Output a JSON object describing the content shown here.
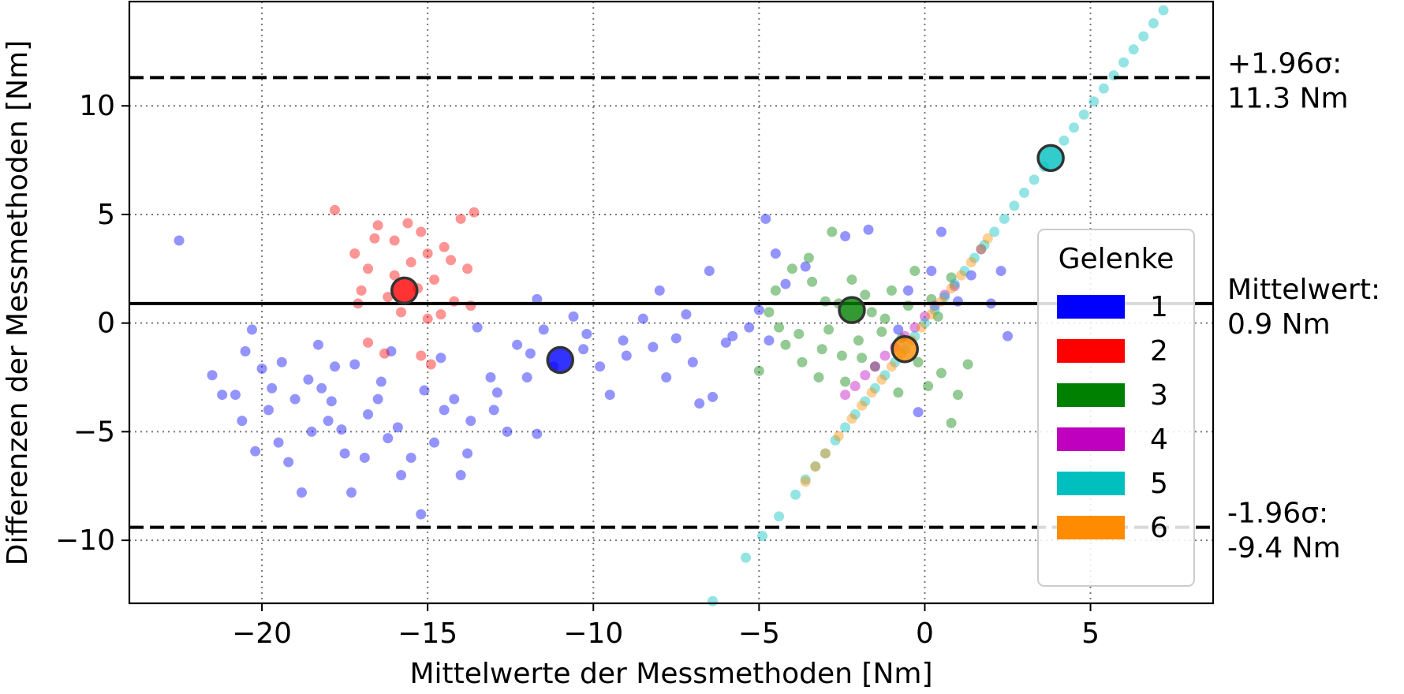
{
  "chart_data": {
    "type": "scatter",
    "title": "",
    "xlabel": "Mittelwerte der Messmethoden [Nm]",
    "ylabel": "Differenzen der Messmethoden [Nm]",
    "xlim": [
      -24,
      8.7
    ],
    "ylim": [
      -12.9,
      14.8
    ],
    "xticks": [
      -20,
      -15,
      -10,
      -5,
      0,
      5
    ],
    "yticks": [
      -10,
      -5,
      0,
      5,
      10
    ],
    "xtick_labels": [
      "−20",
      "−15",
      "−10",
      "−5",
      "0",
      "5"
    ],
    "ytick_labels": [
      "−10",
      "−5",
      "0",
      "5",
      "10"
    ],
    "grid": true,
    "legend": {
      "title": "Gelenke",
      "placement": "lower-right"
    },
    "reference_lines": [
      {
        "name": "upper",
        "y": 11.3,
        "style": "dashed",
        "label_line1": "+1.96σ:",
        "label_line2": "11.3 Nm"
      },
      {
        "name": "mean",
        "y": 0.9,
        "style": "solid",
        "label_line1": "Mittelwert:",
        "label_line2": "0.9 Nm"
      },
      {
        "name": "lower",
        "y": -9.4,
        "style": "dashed",
        "label_line1": "-1.96σ:",
        "label_line2": "-9.4 Nm"
      }
    ],
    "series": [
      {
        "name": "1",
        "color": "#0000ff",
        "mean_point": [
          -11.0,
          -1.7
        ],
        "points": [
          [
            -22.5,
            3.8
          ],
          [
            -21.5,
            -2.4
          ],
          [
            -21.2,
            -3.3
          ],
          [
            -20.8,
            -3.3
          ],
          [
            -20.5,
            -1.3
          ],
          [
            -20.3,
            -0.3
          ],
          [
            -20.0,
            -2.1
          ],
          [
            -20.6,
            -4.5
          ],
          [
            -19.5,
            -5.5
          ],
          [
            -19.8,
            -4.0
          ],
          [
            -19.2,
            -6.4
          ],
          [
            -18.8,
            -7.8
          ],
          [
            -18.5,
            -5.0
          ],
          [
            -18.0,
            -4.5
          ],
          [
            -18.2,
            -3.0
          ],
          [
            -17.8,
            -2.0
          ],
          [
            -17.5,
            -6.0
          ],
          [
            -17.3,
            -7.8
          ],
          [
            -16.9,
            -6.2
          ],
          [
            -16.5,
            -3.5
          ],
          [
            -16.2,
            -5.3
          ],
          [
            -15.8,
            -7.0
          ],
          [
            -15.5,
            -6.2
          ],
          [
            -15.2,
            -8.8
          ],
          [
            -14.8,
            -5.5
          ],
          [
            -14.5,
            -4.0
          ],
          [
            -14.2,
            -3.5
          ],
          [
            -14.0,
            -7.0
          ],
          [
            -13.8,
            -6.0
          ],
          [
            -13.5,
            -0.2
          ],
          [
            -13.1,
            -2.5
          ],
          [
            -13.0,
            -4.0
          ],
          [
            -12.6,
            -5.0
          ],
          [
            -12.3,
            -1.0
          ],
          [
            -12.0,
            -2.5
          ],
          [
            -11.7,
            1.1
          ],
          [
            -11.5,
            -0.3
          ],
          [
            -11.2,
            -2.0
          ],
          [
            -11.7,
            -5.1
          ],
          [
            -10.6,
            0.3
          ],
          [
            -10.3,
            -1.2
          ],
          [
            -10.2,
            -0.5
          ],
          [
            -9.8,
            -2.0
          ],
          [
            -9.5,
            -3.3
          ],
          [
            -9.0,
            -1.5
          ],
          [
            -8.5,
            0.2
          ],
          [
            -8.0,
            1.5
          ],
          [
            -7.8,
            -2.5
          ],
          [
            -7.5,
            -0.7
          ],
          [
            -7.0,
            -1.8
          ],
          [
            -6.8,
            -3.7
          ],
          [
            -6.4,
            -3.4
          ],
          [
            -6.0,
            -0.9
          ],
          [
            -5.8,
            -0.6
          ],
          [
            -5.3,
            -0.2
          ],
          [
            -5.0,
            0.6
          ],
          [
            -4.8,
            4.8
          ],
          [
            -4.5,
            3.2
          ],
          [
            -4.7,
            -0.8
          ],
          [
            -2.4,
            4.0
          ],
          [
            -1.7,
            4.3
          ],
          [
            -0.8,
            -0.3
          ],
          [
            -0.5,
            1.5
          ],
          [
            -0.2,
            -4.1
          ],
          [
            0.2,
            2.4
          ],
          [
            0.5,
            4.2
          ],
          [
            1.4,
            2.2
          ],
          [
            2.0,
            0.9
          ],
          [
            2.3,
            2.4
          ],
          [
            2.5,
            -0.6
          ],
          [
            -19.0,
            -3.5
          ],
          [
            -18.6,
            -2.6
          ],
          [
            -18.3,
            -1.0
          ],
          [
            -17.9,
            -3.6
          ],
          [
            -17.2,
            -1.9
          ],
          [
            -16.8,
            -4.2
          ],
          [
            -16.4,
            -2.7
          ],
          [
            -15.9,
            -4.8
          ],
          [
            -15.1,
            -3.1
          ],
          [
            -14.6,
            -1.6
          ],
          [
            -19.7,
            -3.0
          ],
          [
            -19.4,
            -1.8
          ],
          [
            -17.6,
            -4.9
          ],
          [
            -16.1,
            -1.3
          ],
          [
            -13.7,
            -4.5
          ],
          [
            -12.9,
            -3.2
          ],
          [
            -11.9,
            -1.4
          ],
          [
            -9.1,
            -0.8
          ],
          [
            -8.2,
            -1.1
          ],
          [
            -7.2,
            0.4
          ],
          [
            -6.5,
            2.4
          ],
          [
            -4.2,
            1.8
          ],
          [
            -3.6,
            2.6
          ],
          [
            1.0,
            1.0
          ],
          [
            1.7,
            3.4
          ],
          [
            -20.2,
            -5.9
          ]
        ]
      },
      {
        "name": "2",
        "color": "#ff0000",
        "mean_point": [
          -15.7,
          1.5
        ],
        "points": [
          [
            -17.8,
            5.2
          ],
          [
            -17.2,
            3.2
          ],
          [
            -16.8,
            2.5
          ],
          [
            -16.5,
            4.5
          ],
          [
            -16.2,
            1.2
          ],
          [
            -16.0,
            3.8
          ],
          [
            -15.8,
            0.5
          ],
          [
            -15.5,
            2.8
          ],
          [
            -15.2,
            4.2
          ],
          [
            -15.0,
            0.2
          ],
          [
            -14.8,
            2.0
          ],
          [
            -14.5,
            3.5
          ],
          [
            -14.2,
            1.0
          ],
          [
            -14.0,
            4.8
          ],
          [
            -13.8,
            2.5
          ],
          [
            -13.6,
            5.1
          ],
          [
            -16.8,
            -0.9
          ],
          [
            -16.3,
            -1.4
          ],
          [
            -15.2,
            -1.5
          ],
          [
            -14.9,
            -1.9
          ],
          [
            -13.7,
            0.8
          ],
          [
            -17.0,
            1.5
          ],
          [
            -16.6,
            3.9
          ],
          [
            -15.6,
            4.6
          ],
          [
            -15.3,
            1.6
          ],
          [
            -14.6,
            0.4
          ],
          [
            -14.3,
            2.9
          ],
          [
            -17.1,
            0.9
          ],
          [
            -16.0,
            2.2
          ],
          [
            -15.0,
            3.2
          ]
        ]
      },
      {
        "name": "3",
        "color": "#008000",
        "mean_point": [
          -2.2,
          0.6
        ],
        "points": [
          [
            -5.0,
            -2.2
          ],
          [
            -4.7,
            0.5
          ],
          [
            -4.5,
            1.5
          ],
          [
            -4.2,
            -1.0
          ],
          [
            -4.0,
            2.5
          ],
          [
            -3.8,
            -0.5
          ],
          [
            -3.5,
            3.0
          ],
          [
            -3.2,
            -2.5
          ],
          [
            -3.0,
            1.0
          ],
          [
            -2.8,
            4.2
          ],
          [
            -2.5,
            -1.5
          ],
          [
            -2.2,
            2.0
          ],
          [
            -2.0,
            -0.8
          ],
          [
            -1.8,
            1.3
          ],
          [
            -1.5,
            -2.0
          ],
          [
            -1.2,
            0.2
          ],
          [
            -1.0,
            1.5
          ],
          [
            -0.8,
            -3.2
          ],
          [
            -0.5,
            0.8
          ],
          [
            -0.2,
            -1.8
          ],
          [
            0.2,
            1.1
          ],
          [
            0.5,
            -2.3
          ],
          [
            0.8,
            2.1
          ],
          [
            1.0,
            -3.3
          ],
          [
            1.3,
            -1.9
          ],
          [
            0.8,
            -4.6
          ],
          [
            -3.7,
            -1.8
          ],
          [
            -2.9,
            -0.3
          ],
          [
            -2.4,
            -2.7
          ],
          [
            -1.3,
            -0.4
          ],
          [
            -0.3,
            2.4
          ],
          [
            0.4,
            0.3
          ],
          [
            -4.4,
            -0.2
          ],
          [
            -3.4,
            1.9
          ],
          [
            -2.6,
            0.9
          ],
          [
            -1.6,
            0.5
          ],
          [
            -0.7,
            -0.7
          ],
          [
            0.1,
            -2.9
          ],
          [
            -3.1,
            -1.2
          ],
          [
            -1.9,
            -1.6
          ]
        ]
      },
      {
        "name": "4",
        "color": "#bf00bf",
        "mean_point": null,
        "points": [
          [
            -2.4,
            -3.3
          ],
          [
            -2.1,
            -2.9
          ],
          [
            -1.8,
            -2.4
          ],
          [
            -1.5,
            -2.0
          ],
          [
            -1.2,
            -1.5
          ],
          [
            -0.9,
            -1.1
          ],
          [
            -0.6,
            -0.6
          ],
          [
            -0.3,
            -0.2
          ],
          [
            0.0,
            0.3
          ],
          [
            0.3,
            0.8
          ],
          [
            0.6,
            1.3
          ],
          [
            0.9,
            1.7
          ]
        ]
      },
      {
        "name": "5",
        "color": "#00bfbf",
        "mean_point": [
          3.8,
          7.6
        ],
        "points": [
          [
            -6.4,
            -12.8
          ],
          [
            -5.4,
            -10.8
          ],
          [
            -4.9,
            -9.8
          ],
          [
            -4.4,
            -8.9
          ],
          [
            -3.9,
            -7.9
          ],
          [
            -3.6,
            -7.2
          ],
          [
            -3.3,
            -6.6
          ],
          [
            -3.0,
            -6.0
          ],
          [
            -2.7,
            -5.4
          ],
          [
            -2.4,
            -4.8
          ],
          [
            -2.1,
            -4.2
          ],
          [
            -1.8,
            -3.6
          ],
          [
            -1.5,
            -3.0
          ],
          [
            -1.2,
            -2.4
          ],
          [
            -0.9,
            -1.8
          ],
          [
            -0.6,
            -1.2
          ],
          [
            -0.3,
            -0.6
          ],
          [
            0.0,
            0.0
          ],
          [
            0.3,
            0.6
          ],
          [
            0.6,
            1.2
          ],
          [
            0.9,
            1.8
          ],
          [
            1.2,
            2.4
          ],
          [
            1.5,
            3.0
          ],
          [
            1.8,
            3.6
          ],
          [
            2.1,
            4.2
          ],
          [
            2.4,
            4.8
          ],
          [
            2.7,
            5.4
          ],
          [
            3.0,
            6.0
          ],
          [
            3.3,
            6.6
          ],
          [
            3.6,
            7.2
          ],
          [
            4.2,
            8.4
          ],
          [
            4.5,
            9.0
          ],
          [
            4.8,
            9.6
          ],
          [
            5.1,
            10.2
          ],
          [
            5.4,
            10.8
          ],
          [
            5.7,
            11.4
          ],
          [
            6.0,
            12.0
          ],
          [
            6.3,
            12.6
          ],
          [
            6.6,
            13.2
          ],
          [
            6.9,
            13.8
          ],
          [
            7.2,
            14.4
          ]
        ]
      },
      {
        "name": "6",
        "color": "#ff8c00",
        "mean_point": [
          -0.6,
          -1.2
        ],
        "points": [
          [
            -3.6,
            -7.3
          ],
          [
            -3.3,
            -6.6
          ],
          [
            -3.0,
            -6.0
          ],
          [
            -2.6,
            -5.2
          ],
          [
            -2.2,
            -4.4
          ],
          [
            -1.9,
            -3.8
          ],
          [
            -1.6,
            -3.2
          ],
          [
            -1.3,
            -2.6
          ],
          [
            -1.0,
            -2.0
          ],
          [
            -0.7,
            -1.4
          ],
          [
            -0.4,
            -0.8
          ],
          [
            -0.1,
            -0.2
          ],
          [
            0.2,
            0.4
          ],
          [
            0.5,
            1.0
          ],
          [
            0.8,
            1.6
          ],
          [
            1.1,
            2.2
          ],
          [
            1.4,
            2.8
          ],
          [
            1.7,
            3.4
          ],
          [
            1.9,
            3.9
          ]
        ]
      }
    ]
  }
}
